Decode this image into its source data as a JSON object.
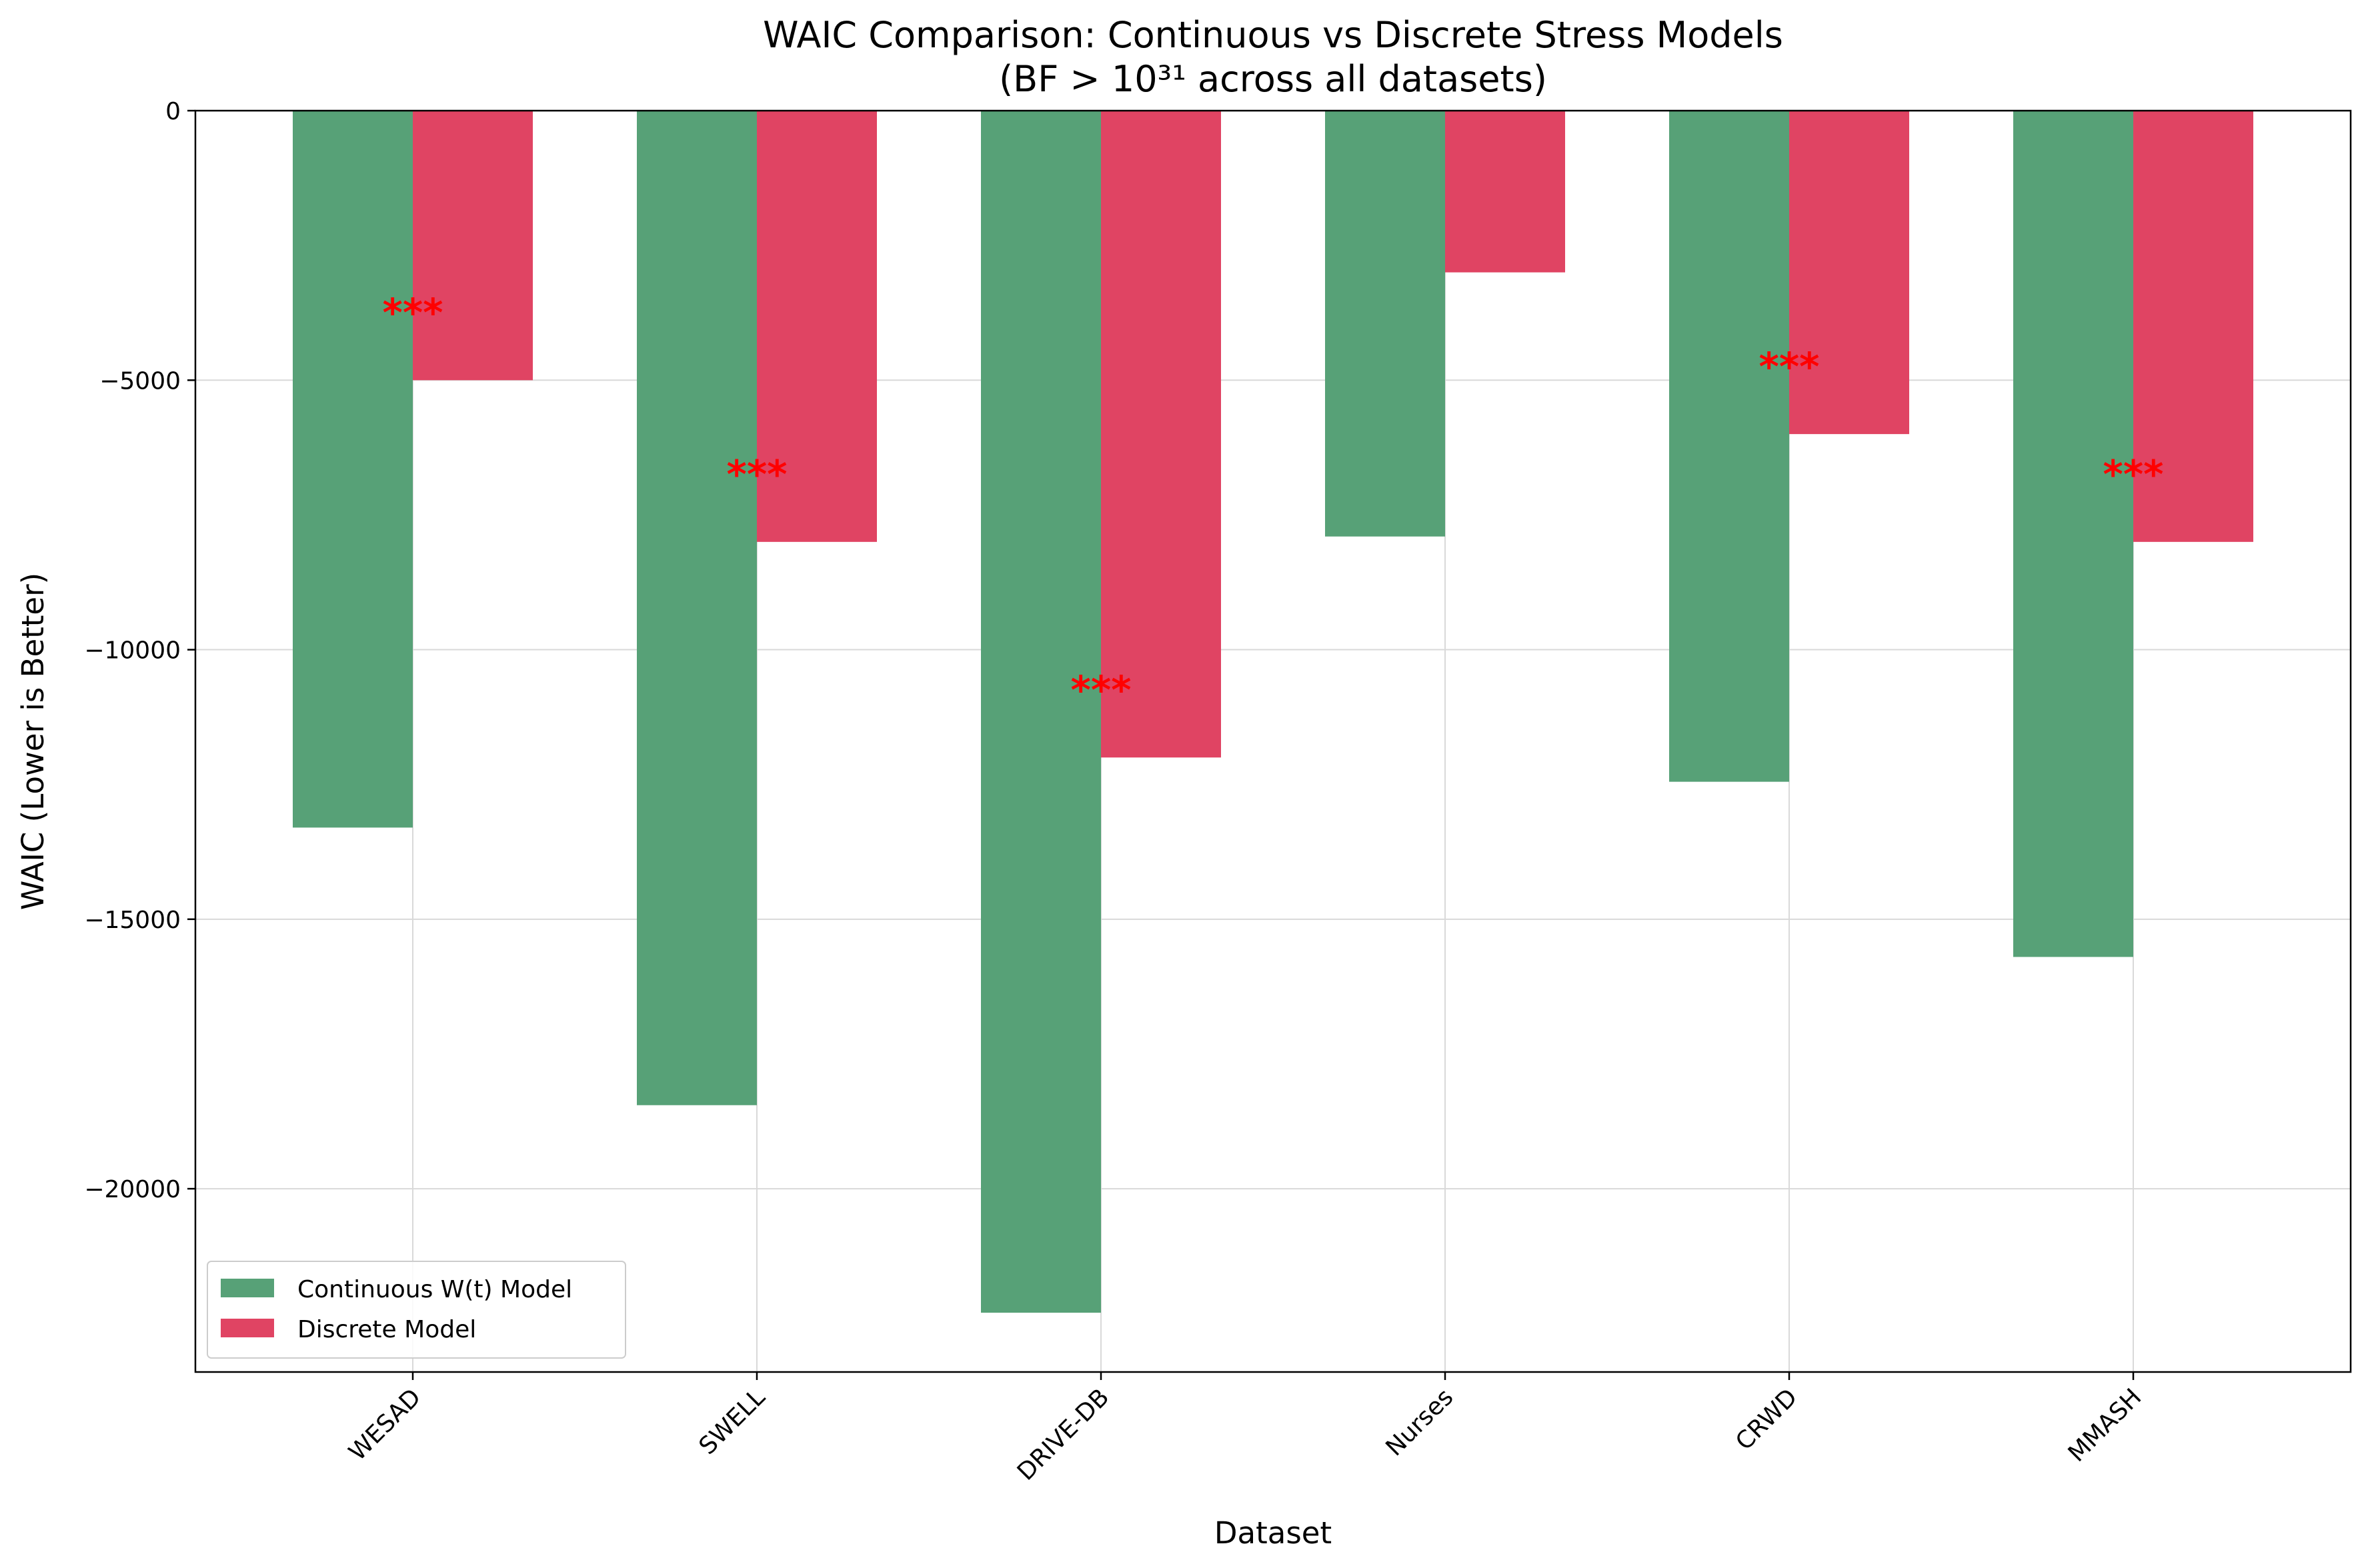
{
  "chart_data": {
    "type": "bar",
    "title_line1": "WAIC Comparison: Continuous vs Discrete Stress Models",
    "title_line2": "(BF > 10³¹ across all datasets)",
    "xlabel": "Dataset",
    "ylabel": "WAIC (Lower is Better)",
    "categories": [
      "WESAD",
      "SWELL",
      "DRIVE-DB",
      "Nurses",
      "CRWD",
      "MMASH"
    ],
    "series": [
      {
        "name": "Continuous W(t) Model",
        "color": "#57a177",
        "values": [
          -13300,
          -18450,
          -22300,
          -7900,
          -12450,
          -15700
        ]
      },
      {
        "name": "Discrete Model",
        "color": "#e04463",
        "values": [
          -5000,
          -8000,
          -12000,
          -3000,
          -6000,
          -8000
        ]
      }
    ],
    "annotations": [
      {
        "category": "WESAD",
        "text": "***",
        "y": -3700
      },
      {
        "category": "SWELL",
        "text": "***",
        "y": -6700
      },
      {
        "category": "DRIVE-DB",
        "text": "***",
        "y": -10700
      },
      {
        "category": "CRWD",
        "text": "***",
        "y": -4700
      },
      {
        "category": "MMASH",
        "text": "***",
        "y": -6700
      }
    ],
    "annotation_color": "#ff0000",
    "yticks": [
      0,
      -5000,
      -10000,
      -15000,
      -20000
    ],
    "ytick_labels": [
      "0",
      "−5000",
      "−10000",
      "−15000",
      "−20000"
    ],
    "ylim": [
      -23400,
      0
    ],
    "grid": true,
    "legend_position": "lower-left"
  }
}
